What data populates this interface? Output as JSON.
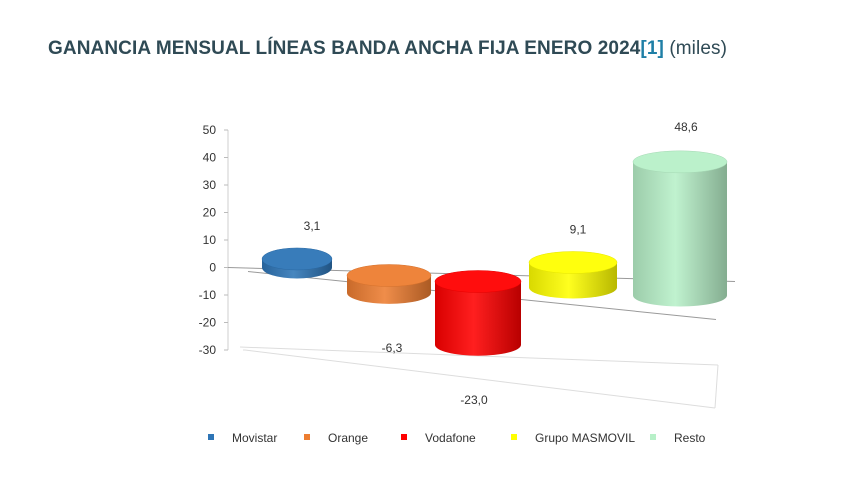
{
  "header": {
    "title": "GANANCIA MENSUAL LÍNEAS BANDA ANCHA FIJA ENERO 2024",
    "ref": "[1]",
    "unit": "(miles)"
  },
  "chart_data": {
    "type": "bar",
    "categories": [
      "Movistar",
      "Orange",
      "Vodafone",
      "Grupo MASMOVIL",
      "Resto"
    ],
    "values": [
      3.1,
      -6.3,
      -23.0,
      9.1,
      48.6
    ],
    "value_labels": [
      "3,1",
      "-6,3",
      "-23,0",
      "9,1",
      "48,6"
    ],
    "colors": [
      "#2e75b6",
      "#ed7d31",
      "#ff0000",
      "#ffff00",
      "#b7f0c8"
    ],
    "yticks": [
      50,
      40,
      30,
      20,
      10,
      0,
      -10,
      -20,
      -30
    ],
    "ylim": [
      -30,
      50
    ],
    "legend": "bottom",
    "grid": false,
    "style": "3d-cylinder"
  }
}
